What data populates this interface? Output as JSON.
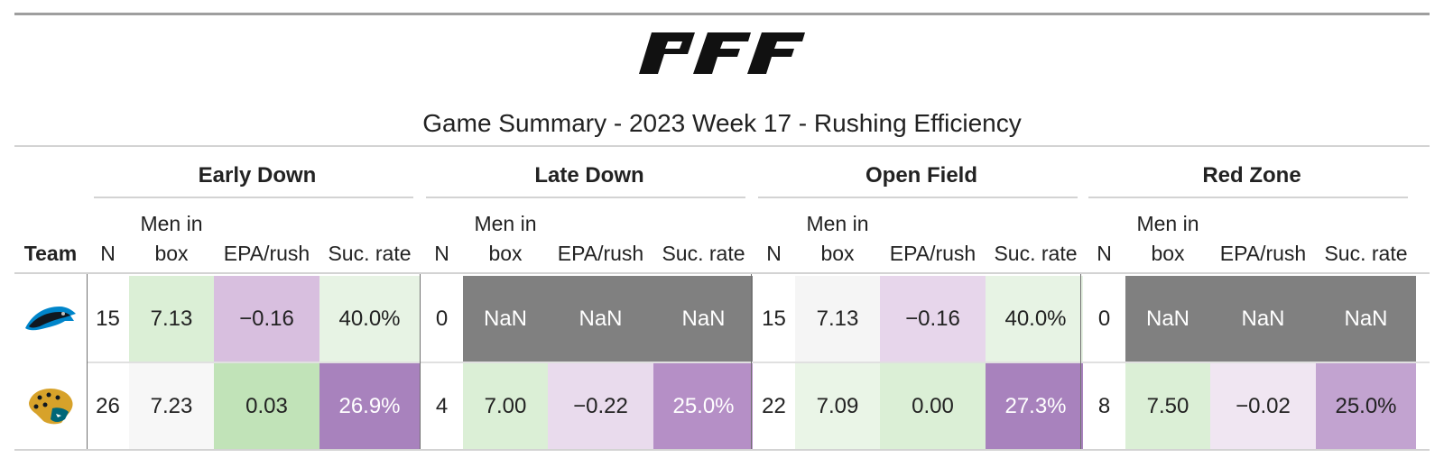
{
  "header": {
    "brand": "PFF",
    "title": "Game Summary - 2023 Week 17 - Rushing Efficiency"
  },
  "spanners": [
    "Early Down",
    "Late Down",
    "Open Field",
    "Red Zone"
  ],
  "columns": {
    "team": "Team",
    "n": "N",
    "men_in_box_1": "Men in",
    "men_in_box_2": "box",
    "epa": "EPA/rush",
    "suc": "Suc. rate"
  },
  "rows": [
    {
      "team_logo": "panthers-logo",
      "values": [
        "15",
        "7.13",
        "−0.16",
        "40.0%",
        "0",
        "NaN",
        "NaN",
        "NaN",
        "15",
        "7.13",
        "−0.16",
        "40.0%",
        "0",
        "NaN",
        "NaN",
        "NaN"
      ],
      "colors": [
        "#ffffff",
        "#dbefd6",
        "#d8bfdf",
        "#e7f3e4",
        "#ffffff",
        "#808080",
        "#808080",
        "#808080",
        "#ffffff",
        "#f5f5f5",
        "#e7d6eb",
        "#e7f3e4",
        "#ffffff",
        "#808080",
        "#808080",
        "#808080"
      ]
    },
    {
      "team_logo": "jaguars-logo",
      "values": [
        "26",
        "7.23",
        "0.03",
        "26.9%",
        "4",
        "7.00",
        "−0.22",
        "25.0%",
        "22",
        "7.09",
        "0.00",
        "27.3%",
        "8",
        "7.50",
        "−0.02",
        "25.0%"
      ],
      "colors": [
        "#ffffff",
        "#f7f7f7",
        "#c1e3b8",
        "#a882bd",
        "#ffffff",
        "#dbefd6",
        "#e9dbed",
        "#b58fc6",
        "#ffffff",
        "#eaf5e7",
        "#dbefd6",
        "#a882bd",
        "#ffffff",
        "#dbefd6",
        "#f0e6f2",
        "#c2a3d0"
      ]
    }
  ]
}
